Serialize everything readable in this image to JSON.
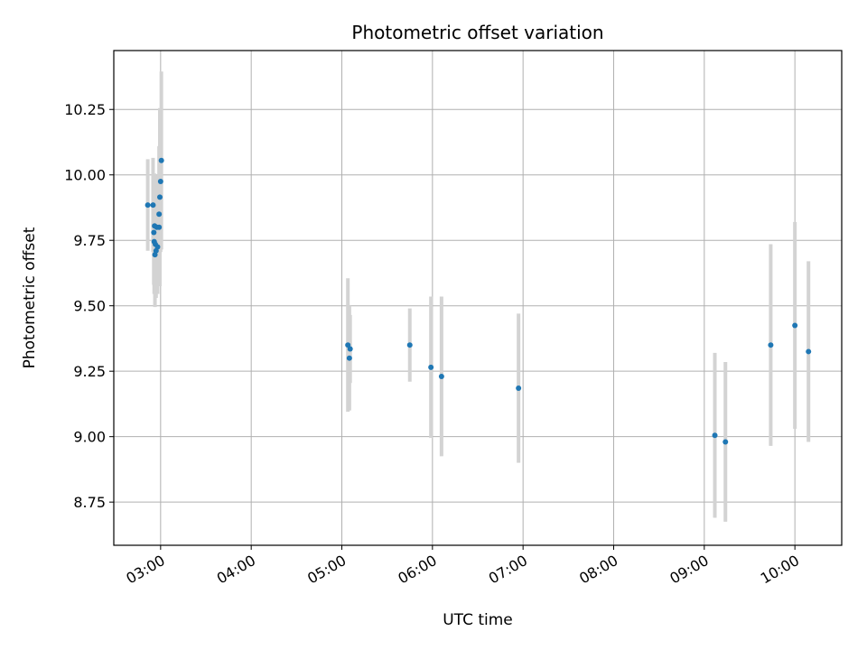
{
  "chart_data": {
    "type": "scatter",
    "title": "Photometric offset variation",
    "xlabel": "UTC time",
    "ylabel": "Photometric offset",
    "grid": true,
    "xlim": [
      "02:29",
      "10:31"
    ],
    "ylim": [
      8.585,
      10.475
    ],
    "x_ticks": [
      "03:00",
      "04:00",
      "05:00",
      "06:00",
      "07:00",
      "08:00",
      "09:00",
      "10:00"
    ],
    "y_ticks": [
      8.75,
      9.0,
      9.25,
      9.5,
      9.75,
      10.0,
      10.25
    ],
    "y_tick_labels": [
      "8.75",
      "9.00",
      "9.25",
      "9.50",
      "9.75",
      "10.00",
      "10.25"
    ],
    "series": [
      {
        "marker_color": "#1f77b4",
        "errorbar_color": "#d3d3d3",
        "points": [
          {
            "t": "02:51:30",
            "y": 9.885,
            "err": 0.175
          },
          {
            "t": "02:55:00",
            "y": 9.885,
            "err": 0.18
          },
          {
            "t": "02:55:30",
            "y": 9.78,
            "err": 0.2
          },
          {
            "t": "02:55:45",
            "y": 9.745,
            "err": 0.2
          },
          {
            "t": "02:56:00",
            "y": 9.805,
            "err": 0.2
          },
          {
            "t": "02:56:15",
            "y": 9.695,
            "err": 0.2
          },
          {
            "t": "02:56:30",
            "y": 9.735,
            "err": 0.2
          },
          {
            "t": "02:57:00",
            "y": 9.71,
            "err": 0.18
          },
          {
            "t": "02:57:30",
            "y": 9.8,
            "err": 0.2
          },
          {
            "t": "02:58:00",
            "y": 9.725,
            "err": 0.18
          },
          {
            "t": "02:59:00",
            "y": 9.8,
            "err": 0.2
          },
          {
            "t": "02:59:00",
            "y": 9.85,
            "err": 0.26
          },
          {
            "t": "02:59:30",
            "y": 9.915,
            "err": 0.34
          },
          {
            "t": "03:00:00",
            "y": 9.975,
            "err": 0.27
          },
          {
            "t": "03:00:30",
            "y": 10.055,
            "err": 0.34
          },
          {
            "t": "05:04:00",
            "y": 9.35,
            "err": 0.255
          },
          {
            "t": "05:05:00",
            "y": 9.3,
            "err": 0.2
          },
          {
            "t": "05:05:30",
            "y": 9.335,
            "err": 0.13
          },
          {
            "t": "05:45:00",
            "y": 9.35,
            "err": 0.14
          },
          {
            "t": "05:59:00",
            "y": 9.265,
            "err": 0.27
          },
          {
            "t": "06:06:00",
            "y": 9.23,
            "err": 0.305
          },
          {
            "t": "06:57:00",
            "y": 9.185,
            "err": 0.285
          },
          {
            "t": "09:07:00",
            "y": 9.005,
            "err": 0.315
          },
          {
            "t": "09:14:00",
            "y": 8.98,
            "err": 0.305
          },
          {
            "t": "09:44:00",
            "y": 9.35,
            "err": 0.385
          },
          {
            "t": "10:00:00",
            "y": 9.425,
            "err": 0.395
          },
          {
            "t": "10:09:00",
            "y": 9.325,
            "err": 0.345
          }
        ]
      }
    ]
  }
}
